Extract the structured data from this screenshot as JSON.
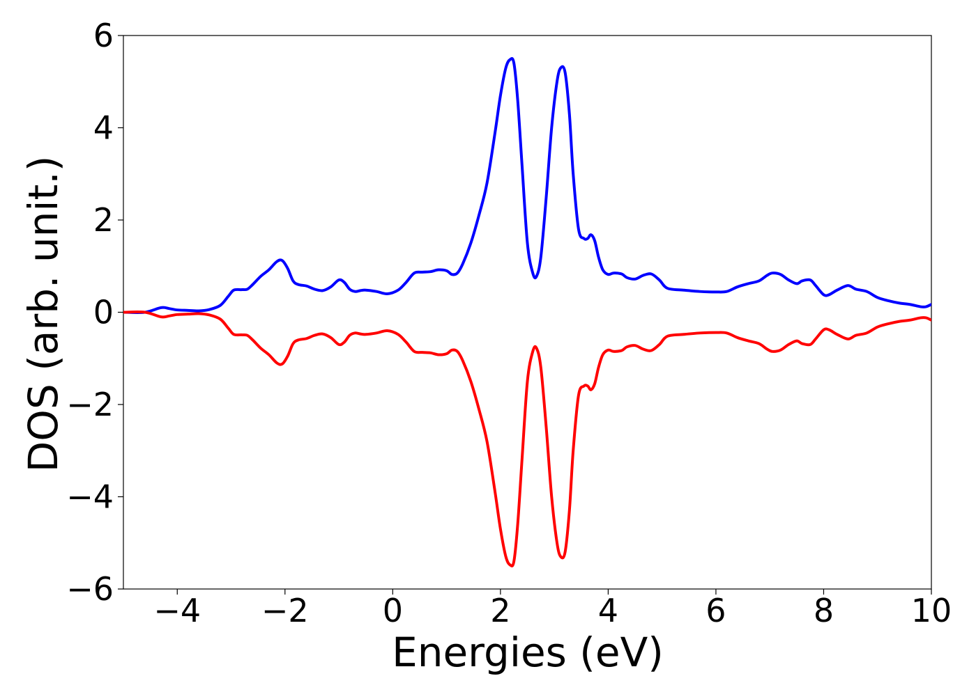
{
  "chart_data": {
    "type": "line",
    "title": "",
    "xlabel": "Energies (eV)",
    "ylabel": "DOS (arb. unit.)",
    "xlim": [
      -5,
      10
    ],
    "ylim": [
      -6,
      6
    ],
    "xticks": [
      -4,
      -2,
      0,
      2,
      4,
      6,
      8,
      10
    ],
    "yticks": [
      -6,
      -4,
      -2,
      0,
      2,
      4,
      6
    ],
    "xtick_labels": [
      "−4",
      "−2",
      "0",
      "2",
      "4",
      "6",
      "8",
      "10"
    ],
    "ytick_labels": [
      "−6",
      "−4",
      "−2",
      "0",
      "2",
      "4",
      "6"
    ],
    "grid": false,
    "legend": "none",
    "series": [
      {
        "color": "#0000ff",
        "x": [
          -5.0,
          -4.6,
          -4.3,
          -4.15,
          -4.0,
          -3.8,
          -3.6,
          -3.4,
          -3.2,
          -3.05,
          -2.95,
          -2.8,
          -2.7,
          -2.6,
          -2.45,
          -2.3,
          -2.15,
          -2.05,
          -1.95,
          -1.85,
          -1.75,
          -1.6,
          -1.45,
          -1.3,
          -1.15,
          -1.0,
          -0.9,
          -0.8,
          -0.7,
          -0.6,
          -0.5,
          -0.3,
          -0.1,
          0.1,
          0.25,
          0.4,
          0.55,
          0.7,
          0.85,
          1.0,
          1.1,
          1.2,
          1.3,
          1.45,
          1.6,
          1.75,
          1.9,
          2.0,
          2.1,
          2.18,
          2.25,
          2.32,
          2.4,
          2.5,
          2.6,
          2.67,
          2.75,
          2.85,
          2.95,
          3.05,
          3.12,
          3.2,
          3.28,
          3.35,
          3.45,
          3.55,
          3.62,
          3.68,
          3.75,
          3.82,
          3.9,
          4.0,
          4.1,
          4.25,
          4.35,
          4.5,
          4.65,
          4.8,
          4.95,
          5.1,
          5.4,
          5.7,
          6.0,
          6.2,
          6.4,
          6.6,
          6.8,
          6.95,
          7.05,
          7.2,
          7.35,
          7.5,
          7.6,
          7.75,
          7.85,
          8.0,
          8.1,
          8.25,
          8.45,
          8.6,
          8.8,
          9.0,
          9.2,
          9.4,
          9.6,
          9.8,
          9.9,
          10.0
        ],
        "y": [
          0.0,
          0.0,
          0.1,
          0.08,
          0.05,
          0.04,
          0.03,
          0.06,
          0.15,
          0.35,
          0.48,
          0.49,
          0.5,
          0.6,
          0.78,
          0.92,
          1.1,
          1.12,
          0.95,
          0.68,
          0.6,
          0.57,
          0.5,
          0.47,
          0.55,
          0.7,
          0.65,
          0.5,
          0.45,
          0.47,
          0.48,
          0.45,
          0.4,
          0.48,
          0.65,
          0.85,
          0.87,
          0.88,
          0.92,
          0.9,
          0.82,
          0.85,
          1.05,
          1.5,
          2.1,
          2.8,
          3.9,
          4.7,
          5.3,
          5.48,
          5.4,
          4.6,
          3.2,
          1.5,
          0.85,
          0.78,
          1.2,
          2.5,
          4.0,
          5.0,
          5.3,
          5.2,
          4.3,
          3.0,
          1.8,
          1.6,
          1.6,
          1.68,
          1.55,
          1.2,
          0.92,
          0.82,
          0.85,
          0.83,
          0.75,
          0.72,
          0.8,
          0.83,
          0.7,
          0.52,
          0.48,
          0.45,
          0.44,
          0.45,
          0.55,
          0.62,
          0.68,
          0.8,
          0.85,
          0.82,
          0.7,
          0.62,
          0.68,
          0.7,
          0.58,
          0.38,
          0.38,
          0.48,
          0.58,
          0.5,
          0.45,
          0.32,
          0.25,
          0.2,
          0.17,
          0.12,
          0.12,
          0.17
        ]
      },
      {
        "color": "#ff0000",
        "x": [
          -5.0,
          -4.6,
          -4.3,
          -4.15,
          -4.0,
          -3.8,
          -3.6,
          -3.4,
          -3.2,
          -3.05,
          -2.95,
          -2.8,
          -2.7,
          -2.6,
          -2.45,
          -2.3,
          -2.15,
          -2.05,
          -1.95,
          -1.85,
          -1.75,
          -1.6,
          -1.45,
          -1.3,
          -1.15,
          -1.0,
          -0.9,
          -0.8,
          -0.7,
          -0.6,
          -0.5,
          -0.3,
          -0.1,
          0.1,
          0.25,
          0.4,
          0.55,
          0.7,
          0.85,
          1.0,
          1.1,
          1.2,
          1.3,
          1.45,
          1.6,
          1.75,
          1.9,
          2.0,
          2.1,
          2.18,
          2.25,
          2.32,
          2.4,
          2.5,
          2.6,
          2.67,
          2.75,
          2.85,
          2.95,
          3.05,
          3.12,
          3.2,
          3.28,
          3.35,
          3.45,
          3.55,
          3.62,
          3.68,
          3.75,
          3.82,
          3.9,
          4.0,
          4.1,
          4.25,
          4.35,
          4.5,
          4.65,
          4.8,
          4.95,
          5.1,
          5.4,
          5.7,
          6.0,
          6.2,
          6.4,
          6.6,
          6.8,
          6.95,
          7.05,
          7.2,
          7.35,
          7.5,
          7.6,
          7.75,
          7.85,
          8.0,
          8.1,
          8.25,
          8.45,
          8.6,
          8.8,
          9.0,
          9.2,
          9.4,
          9.6,
          9.8,
          9.9,
          10.0
        ],
        "y": [
          -0.0,
          -0.0,
          -0.1,
          -0.08,
          -0.05,
          -0.04,
          -0.03,
          -0.06,
          -0.15,
          -0.35,
          -0.48,
          -0.49,
          -0.5,
          -0.6,
          -0.78,
          -0.92,
          -1.1,
          -1.12,
          -0.95,
          -0.68,
          -0.6,
          -0.57,
          -0.5,
          -0.47,
          -0.55,
          -0.7,
          -0.65,
          -0.5,
          -0.45,
          -0.47,
          -0.48,
          -0.45,
          -0.4,
          -0.48,
          -0.65,
          -0.85,
          -0.87,
          -0.88,
          -0.92,
          -0.9,
          -0.82,
          -0.85,
          -1.05,
          -1.5,
          -2.1,
          -2.8,
          -3.9,
          -4.7,
          -5.3,
          -5.48,
          -5.4,
          -4.6,
          -3.2,
          -1.5,
          -0.85,
          -0.78,
          -1.2,
          -2.5,
          -4.0,
          -5.0,
          -5.3,
          -5.2,
          -4.3,
          -3.0,
          -1.8,
          -1.6,
          -1.6,
          -1.68,
          -1.55,
          -1.2,
          -0.92,
          -0.82,
          -0.85,
          -0.83,
          -0.75,
          -0.72,
          -0.8,
          -0.83,
          -0.7,
          -0.52,
          -0.48,
          -0.45,
          -0.44,
          -0.45,
          -0.55,
          -0.62,
          -0.68,
          -0.8,
          -0.85,
          -0.82,
          -0.7,
          -0.62,
          -0.68,
          -0.7,
          -0.58,
          -0.38,
          -0.38,
          -0.48,
          -0.58,
          -0.5,
          -0.45,
          -0.32,
          -0.25,
          -0.2,
          -0.17,
          -0.12,
          -0.12,
          -0.17
        ]
      }
    ]
  }
}
